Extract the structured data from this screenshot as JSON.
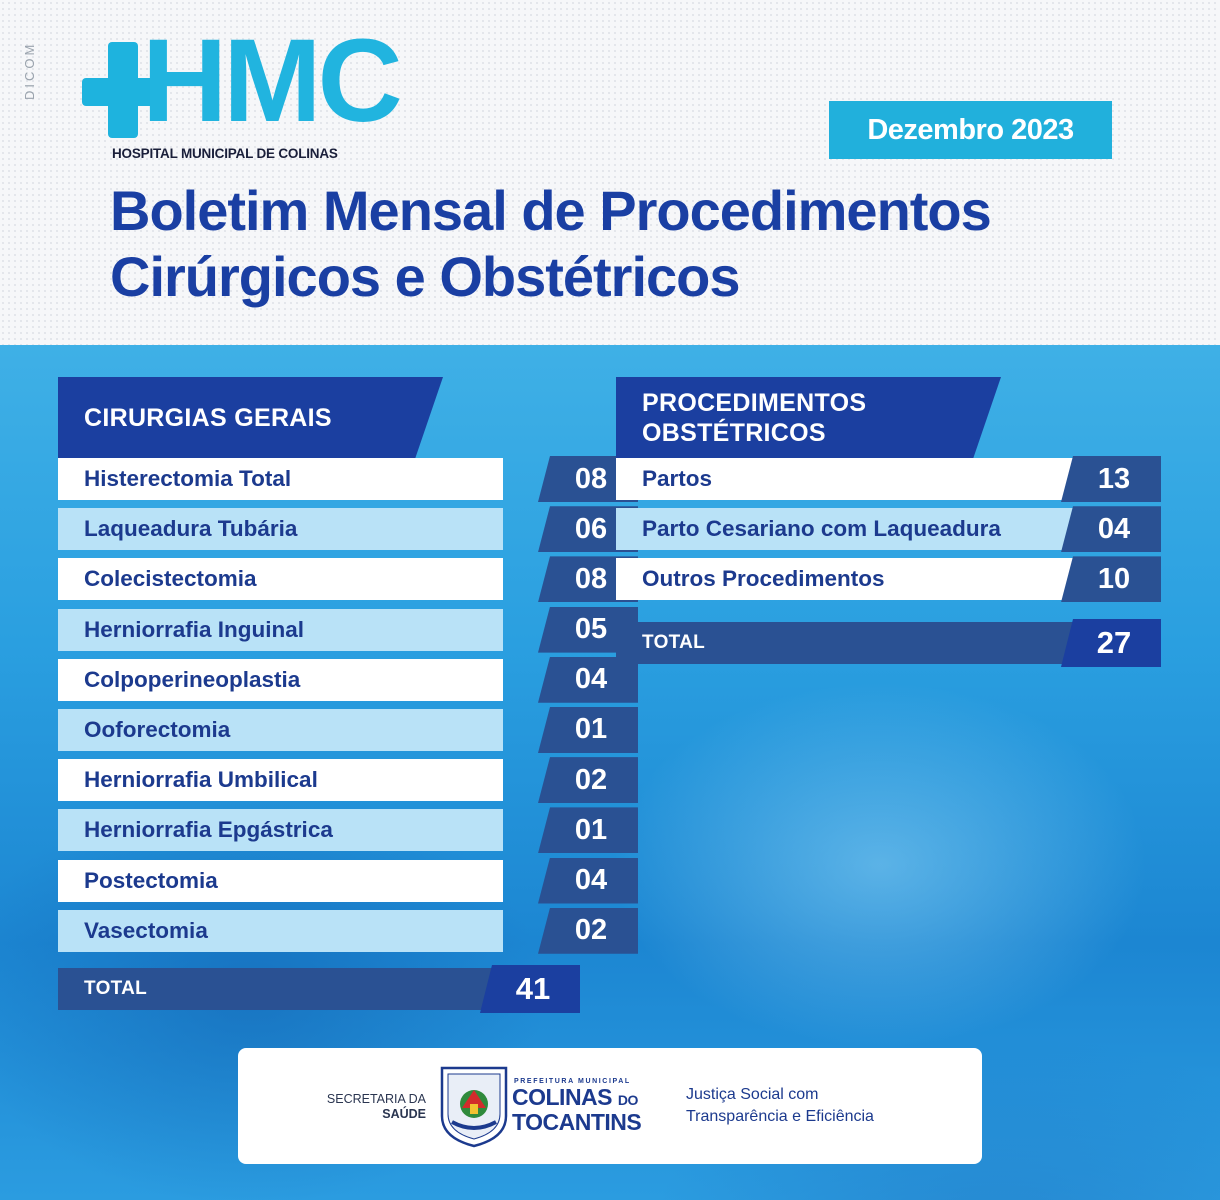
{
  "side_label": "DICOM",
  "logo": {
    "text": "HMC",
    "subtitle": "HOSPITAL MUNICIPAL DE COLINAS"
  },
  "date_badge": "Dezembro 2023",
  "title": {
    "line1": "Boletim Mensal de Procedimentos",
    "line2": "Cirúrgicos e Obstétricos"
  },
  "general_surgeries": {
    "heading": "CIRURGIAS GERAIS",
    "rows": [
      {
        "label": "Histerectomia Total",
        "value": "08"
      },
      {
        "label": "Laqueadura Tubária",
        "value": "06"
      },
      {
        "label": "Colecistectomia",
        "value": "08"
      },
      {
        "label": "Herniorrafia Inguinal",
        "value": "05"
      },
      {
        "label": "Colpoperineoplastia",
        "value": "04"
      },
      {
        "label": "Ooforectomia",
        "value": "01"
      },
      {
        "label": "Herniorrafia Umbilical",
        "value": "02"
      },
      {
        "label": "Herniorrafia Epgástrica",
        "value": "01"
      },
      {
        "label": "Postectomia",
        "value": "04"
      },
      {
        "label": "Vasectomia",
        "value": "02"
      }
    ],
    "total_label": "TOTAL",
    "total_value": "41"
  },
  "obstetric_procedures": {
    "heading_line1": "PROCEDIMENTOS",
    "heading_line2": "OBSTÉTRICOS",
    "rows": [
      {
        "label": "Partos",
        "value": "13"
      },
      {
        "label": "Parto Cesariano com Laqueadura",
        "value": "04"
      },
      {
        "label": "Outros Procedimentos",
        "value": "10"
      }
    ],
    "total_label": "TOTAL",
    "total_value": "27"
  },
  "footer": {
    "secretaria_line1": "SECRETARIA DA",
    "secretaria_line2": "SAÚDE",
    "prefeitura": "PREFEITURA MUNICIPAL",
    "colinas": "COLINAS",
    "do": "DO",
    "tocantins": "TOCANTINS",
    "slogan_line1": "Justiça Social com",
    "slogan_line2": "Transparência e Eficiência"
  },
  "colors": {
    "brand_cyan": "#21b4df",
    "title_blue": "#1a3fa3",
    "value_navy": "#2a5193"
  }
}
